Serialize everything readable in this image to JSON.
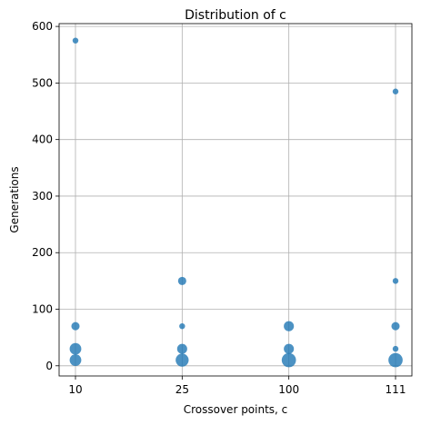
{
  "chart_data": {
    "type": "scatter",
    "title": "Distribution of c",
    "xlabel": "Crossover points, c",
    "ylabel": "Generations",
    "categories": [
      "10",
      "25",
      "100",
      "111"
    ],
    "yticks": [
      "0",
      "100",
      "200",
      "300",
      "400",
      "500",
      "600"
    ],
    "ylim": [
      -18,
      605
    ],
    "grid": true,
    "color": "#1f77b4",
    "points": [
      {
        "x": "10",
        "y": 575,
        "count": 1
      },
      {
        "x": "10",
        "y": 70,
        "count": 2
      },
      {
        "x": "10",
        "y": 30,
        "count": 4
      },
      {
        "x": "10",
        "y": 10,
        "count": 4
      },
      {
        "x": "25",
        "y": 150,
        "count": 2
      },
      {
        "x": "25",
        "y": 70,
        "count": 1
      },
      {
        "x": "25",
        "y": 30,
        "count": 3
      },
      {
        "x": "25",
        "y": 10,
        "count": 5
      },
      {
        "x": "100",
        "y": 70,
        "count": 3
      },
      {
        "x": "100",
        "y": 30,
        "count": 3
      },
      {
        "x": "100",
        "y": 10,
        "count": 6
      },
      {
        "x": "111",
        "y": 485,
        "count": 1
      },
      {
        "x": "111",
        "y": 150,
        "count": 1
      },
      {
        "x": "111",
        "y": 70,
        "count": 2
      },
      {
        "x": "111",
        "y": 30,
        "count": 1
      },
      {
        "x": "111",
        "y": 10,
        "count": 6
      }
    ]
  }
}
